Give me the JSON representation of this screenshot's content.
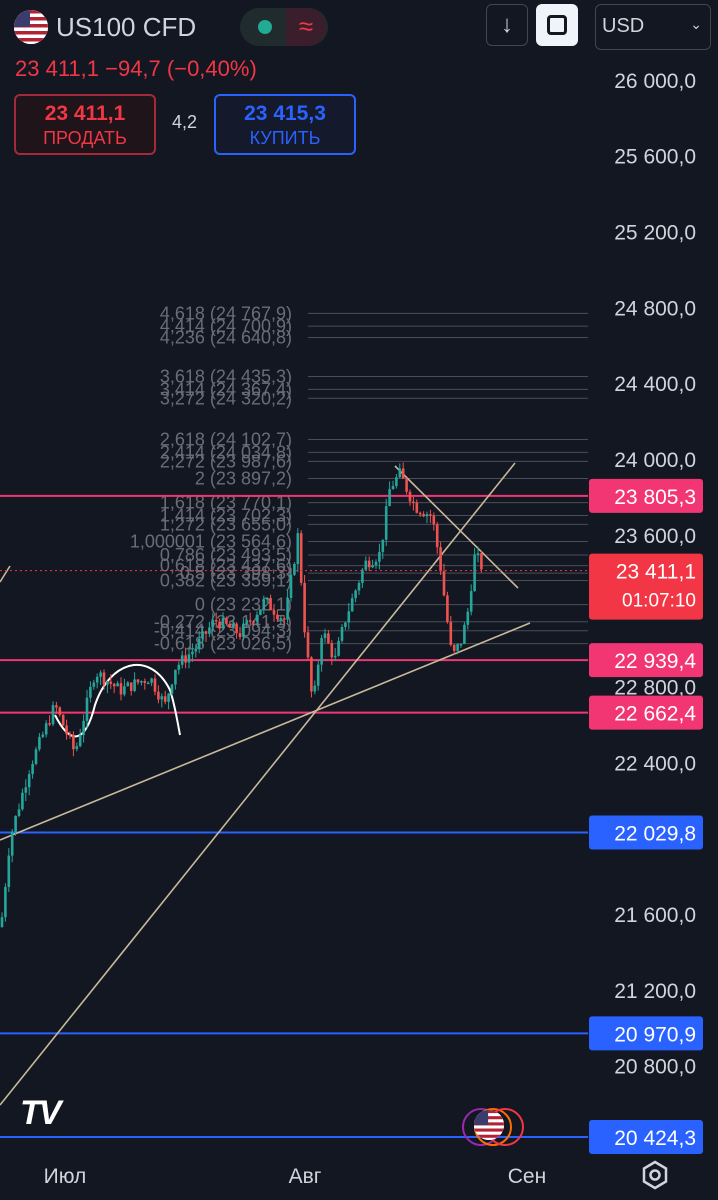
{
  "header": {
    "symbol": "US100 CFD",
    "quote": "23 411,1  −94,7 (−0,40%)",
    "sell_price": "23 411,1",
    "sell_label": "ПРОДАТЬ",
    "spread": "4,2",
    "buy_price": "23 415,3",
    "buy_label": "КУПИТЬ",
    "currency": "USD",
    "down_icon": "↓",
    "wave_icon": "≈"
  },
  "chart_data": {
    "type": "candlestick",
    "x_ticks": [
      "Июл",
      "Авг",
      "Сен"
    ],
    "y_ticks": [
      26000,
      25600,
      25200,
      24800,
      24400,
      24000,
      23600,
      22800,
      22400,
      21600,
      21200,
      20800
    ],
    "y_tick_labels": [
      "26 000,0",
      "25 600,0",
      "25 200,0",
      "24 800,0",
      "24 400,0",
      "24 000,0",
      "23 600,0",
      "22 800,0",
      "22 400,0",
      "21 600,0",
      "21 200,0",
      "20 800,0"
    ],
    "ylim": [
      20380,
      26110
    ],
    "last_price": 23411.1,
    "countdown": "01:07:10",
    "horizontal_levels": [
      {
        "value": 23805.3,
        "label": "23 805,3",
        "color": "#f23674"
      },
      {
        "value": 22939.4,
        "label": "22 939,4",
        "color": "#f23674"
      },
      {
        "value": 22662.4,
        "label": "22 662,4",
        "color": "#f23674"
      },
      {
        "value": 22029.8,
        "label": "22 029,8",
        "color": "#2962ff"
      },
      {
        "value": 20970.9,
        "label": "20 970,9",
        "color": "#2962ff"
      },
      {
        "value": 20424.3,
        "label": "20 424,3",
        "color": "#2962ff"
      }
    ],
    "fib_levels": [
      {
        "ratio": "4,618",
        "value": 24767.9
      },
      {
        "ratio": "4,414",
        "value": 24700.9
      },
      {
        "ratio": "4,236",
        "value": 24640.8
      },
      {
        "ratio": "3,618",
        "value": 24435.3
      },
      {
        "ratio": "3,414",
        "value": 24367.4
      },
      {
        "ratio": "3,272",
        "value": 24320.2
      },
      {
        "ratio": "2,618",
        "value": 24102.7
      },
      {
        "ratio": "2,414",
        "value": 24034.8
      },
      {
        "ratio": "2,272",
        "value": 23987.6
      },
      {
        "ratio": "2",
        "value": 23897.2
      },
      {
        "ratio": "1,618",
        "value": 23770.1
      },
      {
        "ratio": "1,414",
        "value": 23702.3
      },
      {
        "ratio": "1,272",
        "value": 23655.0
      },
      {
        "ratio": "1,000001",
        "value": 23564.6
      },
      {
        "ratio": "0,786",
        "value": 23493.5
      },
      {
        "ratio": "0,618",
        "value": 23437.6
      },
      {
        "ratio": "0,5",
        "value": 23398.3
      },
      {
        "ratio": "0,382",
        "value": 23359.1
      },
      {
        "ratio": "0",
        "value": 23232.1
      },
      {
        "ratio": "-0,272",
        "value": 23141.5
      },
      {
        "ratio": "-0,414",
        "value": 23094.3
      },
      {
        "ratio": "-0,618",
        "value": 23026.5
      }
    ],
    "colors": {
      "up": "#26a69a",
      "down": "#ef5350",
      "background": "#131722",
      "trendline": "#c8b99a",
      "pink_level": "#f23674",
      "blue_level": "#2962ff",
      "fib": "#787b86"
    }
  },
  "colors": {
    "accent_red": "#f23645",
    "accent_blue": "#2962ff",
    "text": "#d1d4dc"
  },
  "icons": [
    "us-flag-icon",
    "market-status-icon",
    "download-icon",
    "fullscreen-icon",
    "settings-icon",
    "tradingview-logo"
  ]
}
